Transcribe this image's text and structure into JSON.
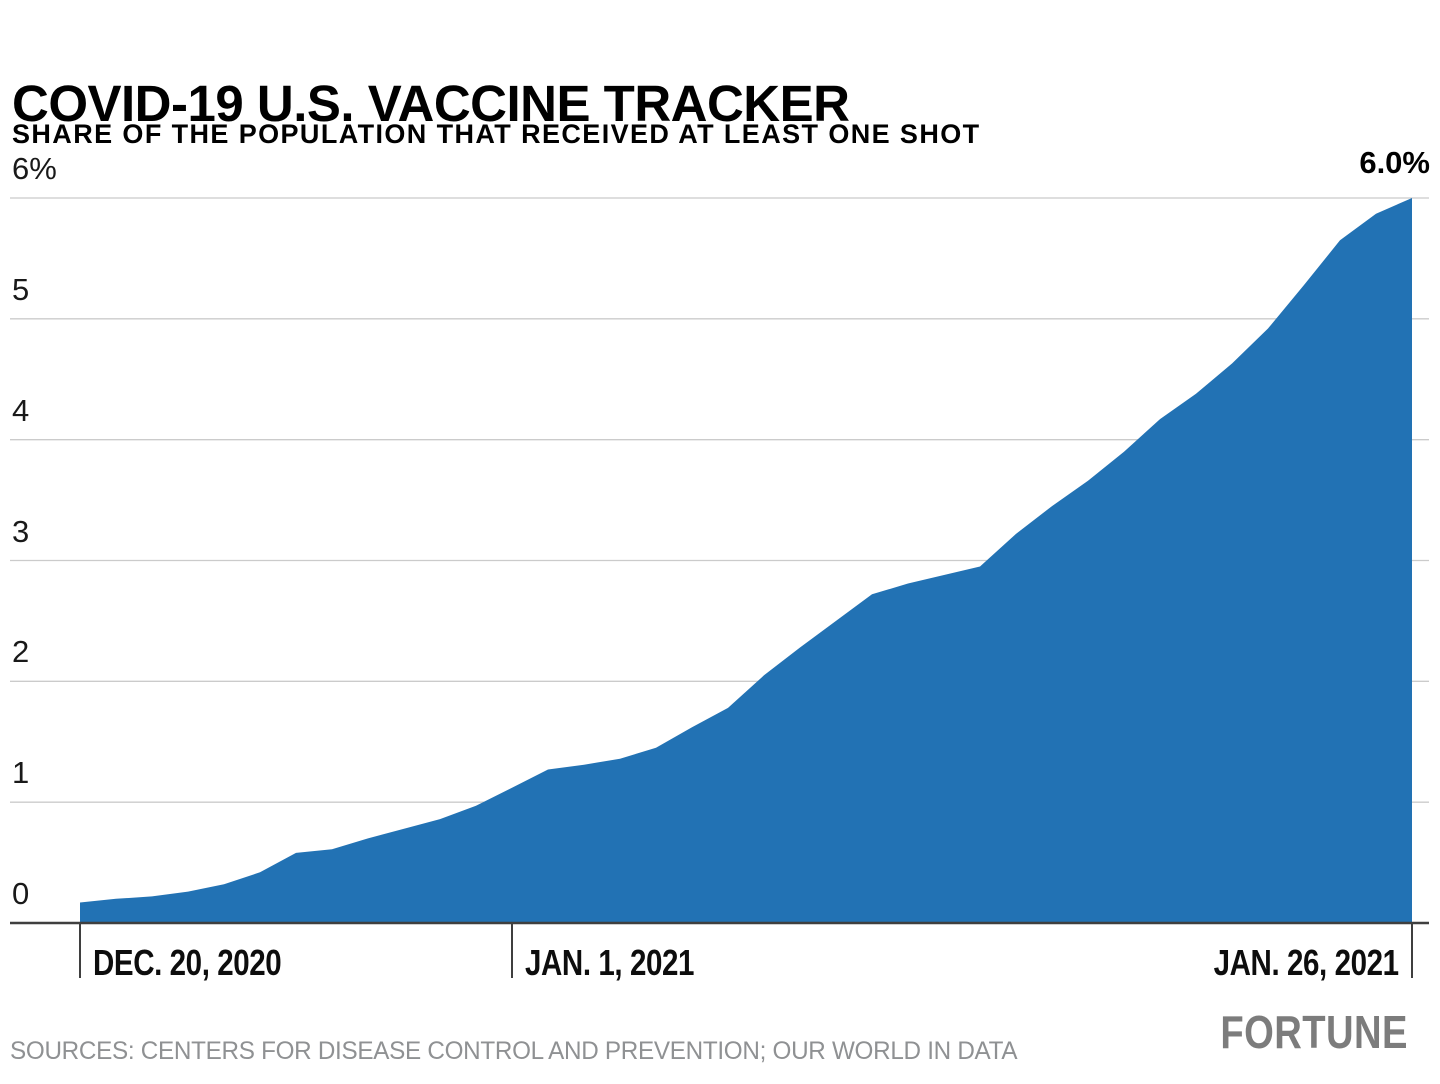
{
  "header": {
    "title": "COVID-19 U.S. VACCINE TRACKER",
    "subtitle": "SHARE OF THE POPULATION THAT RECEIVED AT LEAST ONE SHOT"
  },
  "chart_data": {
    "type": "area",
    "title": "COVID-19 U.S. VACCINE TRACKER",
    "subtitle": "SHARE OF THE POPULATION THAT RECEIVED AT LEAST ONE SHOT",
    "series_name": "Share of U.S. population with at least one shot (%)",
    "x": [
      "Dec. 20, 2020",
      "Dec. 21, 2020",
      "Dec. 22, 2020",
      "Dec. 23, 2020",
      "Dec. 24, 2020",
      "Dec. 25, 2020",
      "Dec. 26, 2020",
      "Dec. 27, 2020",
      "Dec. 28, 2020",
      "Dec. 29, 2020",
      "Dec. 30, 2020",
      "Dec. 31, 2020",
      "Jan. 1, 2021",
      "Jan. 2, 2021",
      "Jan. 3, 2021",
      "Jan. 4, 2021",
      "Jan. 5, 2021",
      "Jan. 6, 2021",
      "Jan. 7, 2021",
      "Jan. 8, 2021",
      "Jan. 9, 2021",
      "Jan. 10, 2021",
      "Jan. 11, 2021",
      "Jan. 12, 2021",
      "Jan. 13, 2021",
      "Jan. 14, 2021",
      "Jan. 15, 2021",
      "Jan. 16, 2021",
      "Jan. 17, 2021",
      "Jan. 18, 2021",
      "Jan. 19, 2021",
      "Jan. 20, 2021",
      "Jan. 21, 2021",
      "Jan. 22, 2021",
      "Jan. 23, 2021",
      "Jan. 24, 2021",
      "Jan. 25, 2021",
      "Jan. 26, 2021"
    ],
    "values": [
      0.17,
      0.2,
      0.22,
      0.26,
      0.32,
      0.42,
      0.58,
      0.61,
      0.7,
      0.78,
      0.86,
      0.97,
      1.12,
      1.27,
      1.31,
      1.36,
      1.45,
      1.62,
      1.78,
      2.05,
      2.28,
      2.5,
      2.72,
      2.81,
      2.88,
      2.95,
      3.22,
      3.45,
      3.66,
      3.9,
      4.17,
      4.38,
      4.63,
      4.92,
      5.28,
      5.65,
      5.87,
      6.0
    ],
    "end_label": "6.0%",
    "ylim": [
      0,
      6
    ],
    "grid": true,
    "legend_position": "none",
    "yticks": [
      {
        "value": 6,
        "label": "6%"
      },
      {
        "value": 5,
        "label": "5"
      },
      {
        "value": 4,
        "label": "4"
      },
      {
        "value": 3,
        "label": "3"
      },
      {
        "value": 2,
        "label": "2"
      },
      {
        "value": 1,
        "label": "1"
      },
      {
        "value": 0,
        "label": "0"
      }
    ],
    "xticks": [
      {
        "index": 0,
        "label": "DEC. 20, 2020",
        "align": "left"
      },
      {
        "index": 12,
        "label": "JAN. 1, 2021",
        "align": "left"
      },
      {
        "index": 37,
        "label": "JAN. 26, 2021",
        "align": "right"
      }
    ],
    "area_color": "#2272b4",
    "grid_color": "#cbcbcb",
    "axis_color": "#3f3f3f",
    "label_color": "#191919"
  },
  "footer": {
    "sources": "SOURCES: CENTERS FOR DISEASE CONTROL AND PREVENTION; OUR WORLD IN DATA",
    "brand": "FORTUNE"
  }
}
